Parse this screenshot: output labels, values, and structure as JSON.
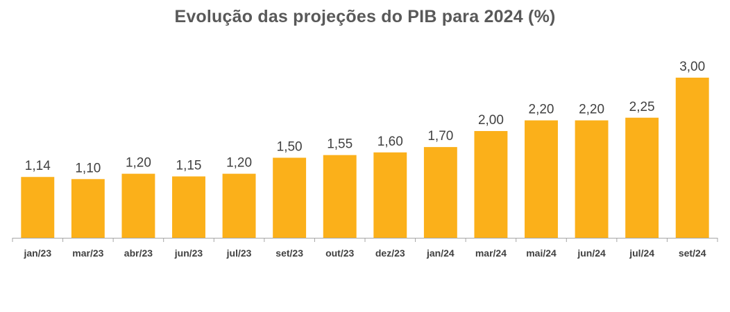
{
  "chart_data": {
    "type": "bar",
    "title": "Evolução das projeções do PIB para 2024 (%)",
    "categories": [
      "jan/23",
      "mar/23",
      "abr/23",
      "jun/23",
      "jul/23",
      "set/23",
      "out/23",
      "dez/23",
      "jan/24",
      "mar/24",
      "mai/24",
      "jun/24",
      "jul/24",
      "set/24"
    ],
    "values": [
      1.14,
      1.1,
      1.2,
      1.15,
      1.2,
      1.5,
      1.55,
      1.6,
      1.7,
      2.0,
      2.2,
      2.2,
      2.25,
      3.0
    ],
    "value_labels": [
      "1,14",
      "1,10",
      "1,20",
      "1,15",
      "1,20",
      "1,50",
      "1,55",
      "1,60",
      "1,70",
      "2,00",
      "2,20",
      "2,20",
      "2,25",
      "3,00"
    ],
    "xlabel": "",
    "ylabel": "",
    "ylim": [
      0,
      3.0
    ],
    "grid": false,
    "legend": "none",
    "bar_color": "#FBB01A",
    "axis_color": "#A6A6A6"
  }
}
